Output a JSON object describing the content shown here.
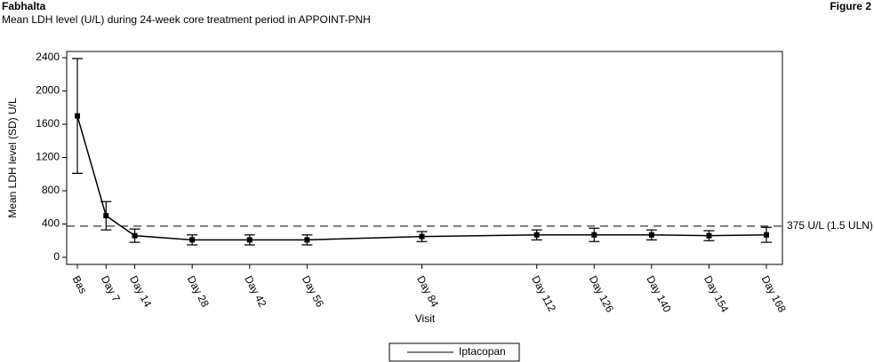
{
  "header": {
    "brand": "Fabhalta",
    "figure": "Figure 2",
    "subtitle": "Mean LDH level (U/L) during 24-week core treatment period in APPOINT-PNH"
  },
  "chart_data": {
    "type": "line",
    "x_label": "Visit",
    "y_label": "Mean LDH level (SD) U/L",
    "x": [
      0,
      7,
      14,
      28,
      42,
      56,
      84,
      112,
      126,
      140,
      154,
      168
    ],
    "xlim": [
      0,
      168
    ],
    "xticks": [
      {
        "value": 0,
        "label": "Bas"
      },
      {
        "value": 7,
        "label": "Day 7"
      },
      {
        "value": 14,
        "label": "Day 14"
      },
      {
        "value": 28,
        "label": "Day 28"
      },
      {
        "value": 42,
        "label": "Day 42"
      },
      {
        "value": 56,
        "label": "Day 56"
      },
      {
        "value": 84,
        "label": "Day 84"
      },
      {
        "value": 112,
        "label": "Day 112"
      },
      {
        "value": 126,
        "label": "Day 126"
      },
      {
        "value": 140,
        "label": "Day 140"
      },
      {
        "value": 154,
        "label": "Day 154"
      },
      {
        "value": 168,
        "label": "Day 168"
      }
    ],
    "ylim": [
      -85,
      2475
    ],
    "yticks": [
      0,
      400,
      800,
      1200,
      1600,
      2000,
      2400
    ],
    "reference_line": {
      "value": 375,
      "label": "375 U/L (1.5 ULN)"
    },
    "series": [
      {
        "name": "Iptacopan",
        "color": "#000000",
        "values": [
          1700,
          500,
          260,
          210,
          210,
          210,
          250,
          270,
          270,
          270,
          260,
          270
        ],
        "errors": [
          690,
          170,
          80,
          60,
          60,
          60,
          60,
          60,
          80,
          60,
          60,
          90
        ]
      }
    ]
  }
}
